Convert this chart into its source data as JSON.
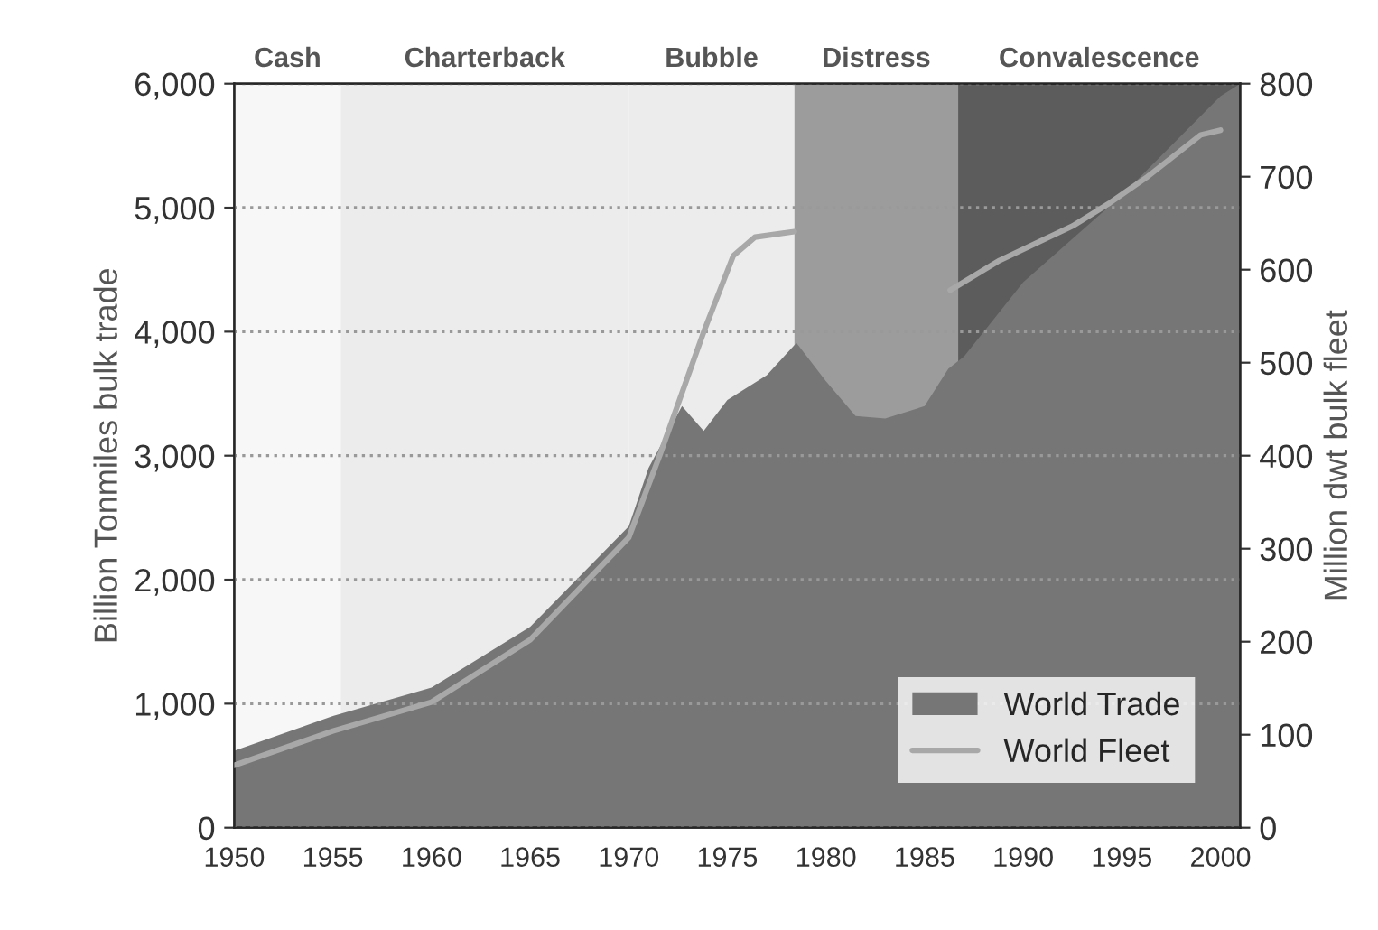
{
  "chart_data": {
    "type": "area",
    "ylabel": "Billion Tonmiles bulk trade",
    "y2label": "Million dwt bulk fleet",
    "xlim": [
      1950,
      2001
    ],
    "xticks": [
      1950,
      1955,
      1960,
      1965,
      1970,
      1975,
      1980,
      1985,
      1990,
      1995,
      2000
    ],
    "ylim": [
      0,
      6000
    ],
    "yticks": [
      0,
      {
        "value": 1000,
        "label": "1,000"
      },
      {
        "value": 2000,
        "label": "2,000"
      },
      {
        "value": 3000,
        "label": "3,000"
      },
      {
        "value": 4000,
        "label": "4,000"
      },
      {
        "value": 5000,
        "label": "5,000"
      },
      {
        "value": 6000,
        "label": "6,000"
      }
    ],
    "y2lim": [
      0,
      800
    ],
    "y2ticks": [
      0,
      100,
      200,
      300,
      400,
      500,
      600,
      700,
      800
    ],
    "grid": "y",
    "legend": "bottom right",
    "series": [
      {
        "name": "World Trade",
        "color": "#767676",
        "x": [
          1950,
          1955,
          1960,
          1965,
          1970,
          1971,
          1972.7,
          1973.8,
          1975,
          1977,
          1978.5,
          1980,
          1981.5,
          1983,
          1985,
          1986.2,
          1987,
          1990,
          1995,
          2000,
          2001
        ],
        "values": [
          620,
          900,
          1130,
          1620,
          2430,
          2900,
          3400,
          3200,
          3450,
          3650,
          3910,
          3600,
          3320,
          3300,
          3400,
          3700,
          3800,
          4400,
          5100,
          5900,
          6000
        ]
      },
      {
        "name": "World Fleet",
        "type": "line",
        "axis": "y2",
        "color": "#a8a8a8",
        "x": [
          1950,
          1955,
          1960,
          1965,
          1970,
          1971.6,
          1973.8,
          1975.3,
          1976.4,
          1978.4,
          1980,
          1985,
          1986.3,
          1988.8,
          1992.5,
          1994.4,
          1996.3,
          1999,
          2000
        ],
        "values": [
          67,
          104,
          135,
          202,
          312,
          402,
          533,
          615,
          635,
          641,
          null,
          null,
          578,
          610,
          647,
          672,
          700,
          745,
          750
        ]
      }
    ],
    "bands": [
      {
        "axis": "x",
        "from": 1950,
        "to": 1955.4,
        "label": "Cash",
        "color": "#f7f7f7"
      },
      {
        "axis": "x",
        "from": 1955.4,
        "to": 1970,
        "label": "Charterback",
        "color": "#ececec"
      },
      {
        "axis": "x",
        "from": 1970,
        "to": 1978.4,
        "label": "Bubble",
        "color": "#ececec"
      },
      {
        "axis": "x",
        "from": 1978.4,
        "to": 1986.7,
        "label": "Distress",
        "color": "#9c9c9c"
      },
      {
        "axis": "x",
        "from": 1986.7,
        "to": 2001,
        "label": "Convalescence",
        "color": "#5c5c5c"
      }
    ]
  }
}
